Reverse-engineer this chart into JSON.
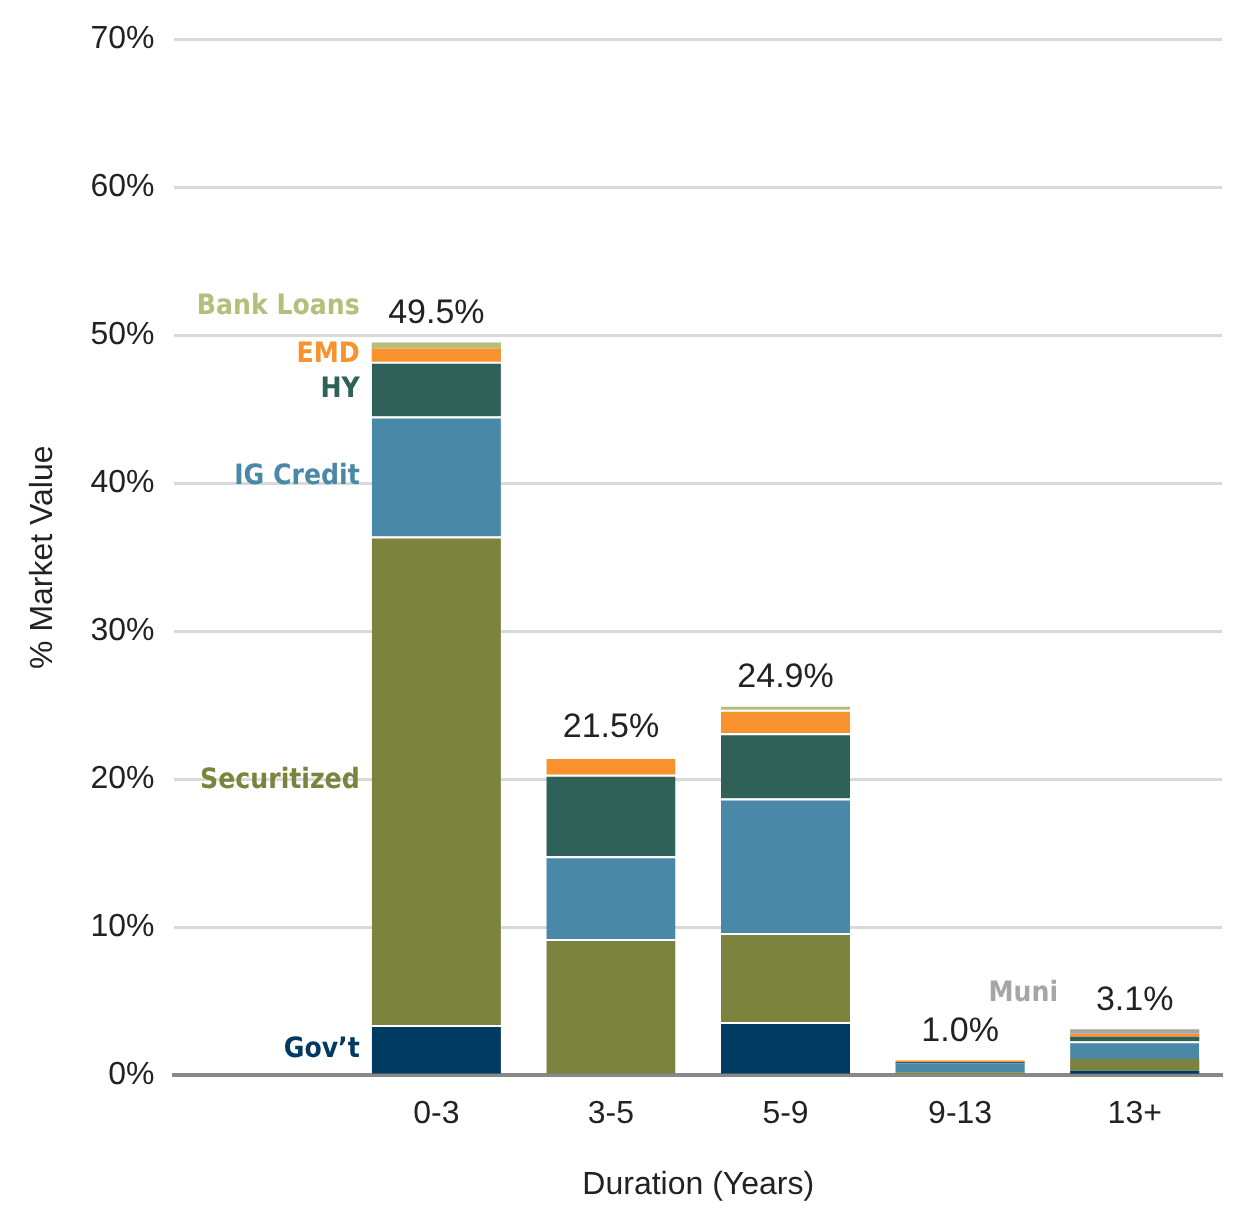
{
  "chart_data": {
    "type": "bar",
    "stacked": true,
    "xlabel": "Duration (Years)",
    "ylabel": "% Market Value",
    "categories": [
      null,
      "0-3",
      "3-5",
      "5-9",
      "9-13",
      "13+"
    ],
    "series": [
      {
        "name": "Gov’t",
        "color": "#003a63",
        "values": [
          null,
          3.4,
          0,
          3.6,
          0.1,
          0.3
        ]
      },
      {
        "name": "Securitized",
        "color": "#7b833e",
        "values": [
          null,
          33.0,
          9.2,
          6.0,
          0.1,
          0.8
        ]
      },
      {
        "name": "IG Credit",
        "color": "#4a88a8",
        "values": [
          null,
          8.1,
          5.6,
          9.1,
          0.6,
          1.2
        ]
      },
      {
        "name": "HY",
        "color": "#2f6158",
        "values": [
          null,
          3.7,
          5.5,
          4.4,
          0.1,
          0.3
        ]
      },
      {
        "name": "EMD",
        "color": "#f7922e",
        "values": [
          null,
          0.9,
          1.2,
          1.6,
          0.1,
          0.2
        ]
      },
      {
        "name": "Bank Loans",
        "color": "#b5be7a",
        "values": [
          null,
          0.4,
          0,
          0.2,
          0,
          0
        ]
      },
      {
        "name": "Muni",
        "color": "#a6a6a6",
        "values": [
          null,
          0,
          0,
          0,
          0,
          0.3
        ]
      }
    ],
    "totals": [
      null,
      "49.5%",
      "21.5%",
      "24.9%",
      "1.0%",
      "3.1%"
    ],
    "ylim": [
      0,
      70
    ],
    "yticks": [
      {
        "value": 0,
        "label": "0%"
      },
      {
        "value": 10,
        "label": "10%"
      },
      {
        "value": 20,
        "label": "20%"
      },
      {
        "value": 30,
        "label": "30%"
      },
      {
        "value": 40,
        "label": "40%"
      },
      {
        "value": 50,
        "label": "50%"
      },
      {
        "value": 60,
        "label": "60%"
      },
      {
        "value": 70,
        "label": "70%"
      }
    ],
    "grid": "y",
    "legend": false
  }
}
